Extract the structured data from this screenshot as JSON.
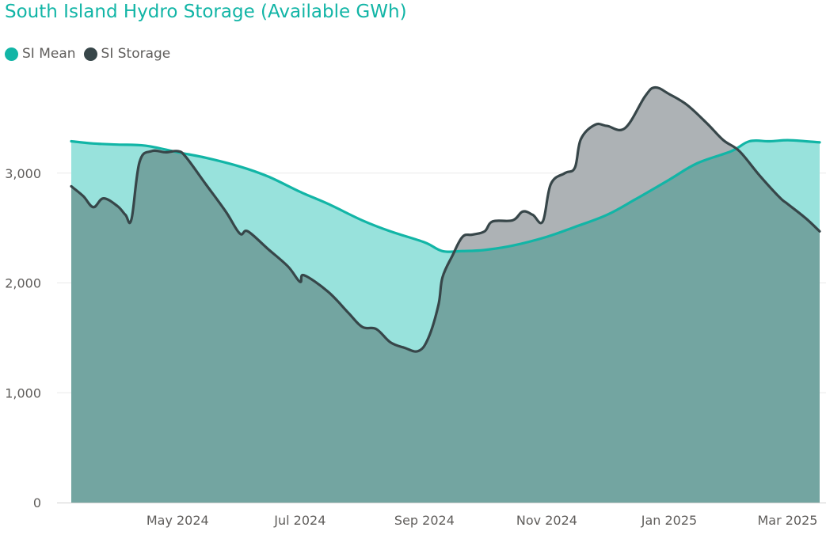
{
  "chart_data": {
    "type": "area",
    "title": "South Island Hydro Storage (Available GWh)",
    "xlabel": "",
    "ylabel": "",
    "ylim": [
      0,
      4000
    ],
    "xlim": [
      "2024-03-09",
      "2025-03-17"
    ],
    "grid": "horizontal",
    "legend_position": "top-left",
    "y_ticks": [
      {
        "value": 0,
        "label": "0"
      },
      {
        "value": 1000,
        "label": "1,000"
      },
      {
        "value": 2000,
        "label": "2,000"
      },
      {
        "value": 3000,
        "label": "3,000"
      }
    ],
    "x_ticks": [
      {
        "date": "2024-05-01",
        "label": "May 2024"
      },
      {
        "date": "2024-07-01",
        "label": "Jul 2024"
      },
      {
        "date": "2024-09-01",
        "label": "Sep 2024"
      },
      {
        "date": "2024-11-01",
        "label": "Nov 2024"
      },
      {
        "date": "2025-01-01",
        "label": "Jan 2025"
      },
      {
        "date": "2025-03-01",
        "label": "Mar 2025"
      }
    ],
    "colors": {
      "mean_line": "#12B5A6",
      "mean_fill": "#98E2DC",
      "storage_line": "#374649",
      "storage_fill": "#ADB2B5",
      "overlap_fill": "#73A5A1",
      "grid": "#E9E9E9",
      "axis": "#D0D0D0"
    },
    "series": [
      {
        "name": "SI Mean",
        "color": "#12B5A6",
        "points": [
          [
            "2024-03-09",
            3290
          ],
          [
            "2024-03-20",
            3270
          ],
          [
            "2024-04-01",
            3260
          ],
          [
            "2024-04-15",
            3250
          ],
          [
            "2024-05-01",
            3190
          ],
          [
            "2024-05-15",
            3140
          ],
          [
            "2024-06-01",
            3060
          ],
          [
            "2024-06-15",
            2970
          ],
          [
            "2024-07-01",
            2830
          ],
          [
            "2024-07-15",
            2720
          ],
          [
            "2024-08-01",
            2570
          ],
          [
            "2024-08-15",
            2470
          ],
          [
            "2024-09-01",
            2370
          ],
          [
            "2024-09-10",
            2290
          ],
          [
            "2024-09-20",
            2290
          ],
          [
            "2024-10-01",
            2300
          ],
          [
            "2024-10-15",
            2340
          ],
          [
            "2024-11-01",
            2420
          ],
          [
            "2024-11-15",
            2510
          ],
          [
            "2024-12-01",
            2620
          ],
          [
            "2024-12-15",
            2760
          ],
          [
            "2025-01-01",
            2940
          ],
          [
            "2025-01-15",
            3090
          ],
          [
            "2025-02-01",
            3200
          ],
          [
            "2025-02-10",
            3290
          ],
          [
            "2025-02-20",
            3290
          ],
          [
            "2025-03-01",
            3300
          ],
          [
            "2025-03-10",
            3290
          ],
          [
            "2025-03-17",
            3280
          ]
        ]
      },
      {
        "name": "SI Storage",
        "color": "#374649",
        "points": [
          [
            "2024-03-09",
            2880
          ],
          [
            "2024-03-15",
            2790
          ],
          [
            "2024-03-20",
            2690
          ],
          [
            "2024-03-25",
            2770
          ],
          [
            "2024-04-01",
            2700
          ],
          [
            "2024-04-05",
            2620
          ],
          [
            "2024-04-08",
            2580
          ],
          [
            "2024-04-12",
            3100
          ],
          [
            "2024-04-18",
            3200
          ],
          [
            "2024-04-25",
            3190
          ],
          [
            "2024-05-01",
            3200
          ],
          [
            "2024-05-05",
            3150
          ],
          [
            "2024-05-15",
            2900
          ],
          [
            "2024-05-25",
            2650
          ],
          [
            "2024-06-01",
            2450
          ],
          [
            "2024-06-05",
            2470
          ],
          [
            "2024-06-15",
            2310
          ],
          [
            "2024-06-25",
            2150
          ],
          [
            "2024-07-01",
            2010
          ],
          [
            "2024-07-03",
            2070
          ],
          [
            "2024-07-15",
            1920
          ],
          [
            "2024-07-25",
            1730
          ],
          [
            "2024-08-01",
            1600
          ],
          [
            "2024-08-08",
            1580
          ],
          [
            "2024-08-15",
            1460
          ],
          [
            "2024-08-22",
            1410
          ],
          [
            "2024-08-29",
            1380
          ],
          [
            "2024-09-03",
            1500
          ],
          [
            "2024-09-08",
            1800
          ],
          [
            "2024-09-10",
            2050
          ],
          [
            "2024-09-15",
            2250
          ],
          [
            "2024-09-20",
            2420
          ],
          [
            "2024-09-25",
            2440
          ],
          [
            "2024-10-01",
            2470
          ],
          [
            "2024-10-05",
            2560
          ],
          [
            "2024-10-15",
            2570
          ],
          [
            "2024-10-20",
            2650
          ],
          [
            "2024-10-25",
            2620
          ],
          [
            "2024-10-30",
            2560
          ],
          [
            "2024-11-03",
            2900
          ],
          [
            "2024-11-10",
            3000
          ],
          [
            "2024-11-15",
            3050
          ],
          [
            "2024-11-18",
            3310
          ],
          [
            "2024-11-25",
            3440
          ],
          [
            "2024-12-01",
            3430
          ],
          [
            "2024-12-10",
            3410
          ],
          [
            "2024-12-20",
            3700
          ],
          [
            "2024-12-25",
            3780
          ],
          [
            "2025-01-01",
            3720
          ],
          [
            "2025-01-10",
            3620
          ],
          [
            "2025-01-20",
            3450
          ],
          [
            "2025-01-28",
            3300
          ],
          [
            "2025-02-05",
            3200
          ],
          [
            "2025-02-15",
            2980
          ],
          [
            "2025-02-25",
            2780
          ],
          [
            "2025-03-01",
            2720
          ],
          [
            "2025-03-10",
            2590
          ],
          [
            "2025-03-17",
            2470
          ]
        ]
      }
    ]
  }
}
